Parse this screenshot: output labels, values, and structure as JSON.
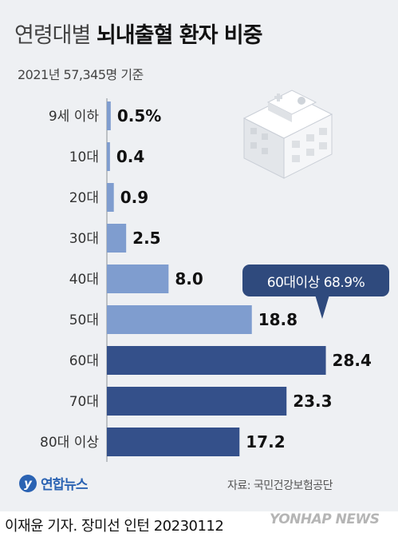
{
  "title_light": "연령대별",
  "title_bold": "뇌내출혈 환자 비중",
  "subtitle": "2021년 57,345명 기준",
  "callout": "60대이상 68.9%",
  "logo_text": "연합뉴스",
  "source": "자료: 국민건강보험공단",
  "credit": "이재윤 기자. 장미선 인턴  20230112",
  "watermark": "YONHAP NEWS",
  "colors": {
    "light_bar": "#7f9dcf",
    "dark_bar": "#34508a",
    "accent": "#2f4a7d"
  },
  "chart_data": {
    "type": "bar",
    "orientation": "horizontal",
    "categories": [
      "9세 이하",
      "10대",
      "20대",
      "30대",
      "40대",
      "50대",
      "60대",
      "70대",
      "80대 이상"
    ],
    "values": [
      0.5,
      0.4,
      0.9,
      2.5,
      8.0,
      18.8,
      28.4,
      23.3,
      17.2
    ],
    "data_labels": [
      "0.5%",
      "0.4",
      "0.9",
      "2.5",
      "8.0",
      "18.8",
      "28.4",
      "23.3",
      "17.2"
    ],
    "highlight_from_index": 6,
    "xlim": [
      0,
      30
    ]
  }
}
